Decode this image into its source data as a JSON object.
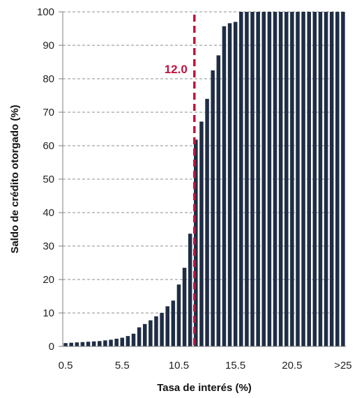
{
  "chart_data": {
    "type": "bar",
    "title": "",
    "xlabel": "Tasa de interés (%)",
    "ylabel": "Saldo de crédito otorgado (%)",
    "ylim": [
      0,
      100
    ],
    "yticks": [
      0,
      10,
      20,
      30,
      40,
      50,
      60,
      70,
      80,
      90,
      100
    ],
    "x_tick_labels": [
      "0.5",
      "5.5",
      "10.5",
      "15.5",
      "20.5",
      ">25"
    ],
    "x_tick_label_category_index": [
      0,
      10,
      20,
      30,
      40,
      49
    ],
    "grid": "horizontal dashed",
    "bar_color": "#1f2d45",
    "categories": [
      "0.5",
      "1.0",
      "1.5",
      "2.0",
      "2.5",
      "3.0",
      "3.5",
      "4.0",
      "4.5",
      "5.0",
      "5.5",
      "6.0",
      "6.5",
      "7.0",
      "7.5",
      "8.0",
      "8.5",
      "9.0",
      "9.5",
      "10.0",
      "10.5",
      "11.0",
      "11.5",
      "12.0",
      "12.5",
      "13.0",
      "13.5",
      "14.0",
      "14.5",
      "15.0",
      "15.5",
      "16.0",
      "16.5",
      "17.0",
      "17.5",
      "18.0",
      "18.5",
      "19.0",
      "19.5",
      "20.0",
      "20.5",
      "21.0",
      "21.5",
      "22.0",
      "22.5",
      "23.0",
      "23.5",
      "24.0",
      "24.5",
      ">25"
    ],
    "values": [
      1.0,
      1.1,
      1.2,
      1.3,
      1.4,
      1.5,
      1.6,
      1.8,
      2.0,
      2.3,
      2.6,
      3.1,
      3.8,
      5.7,
      6.7,
      7.8,
      9.0,
      10.0,
      12.0,
      13.7,
      18.5,
      23.5,
      33.7,
      61.8,
      67.2,
      74.0,
      82.5,
      87.0,
      95.7,
      96.6,
      97.0,
      100,
      100,
      100,
      100,
      100,
      100,
      100,
      100,
      100,
      100,
      100,
      100,
      100,
      100,
      100,
      100,
      100,
      100,
      100
    ],
    "reference_line": {
      "x": 12.0,
      "label": "12.0",
      "color": "#c0143c"
    }
  }
}
